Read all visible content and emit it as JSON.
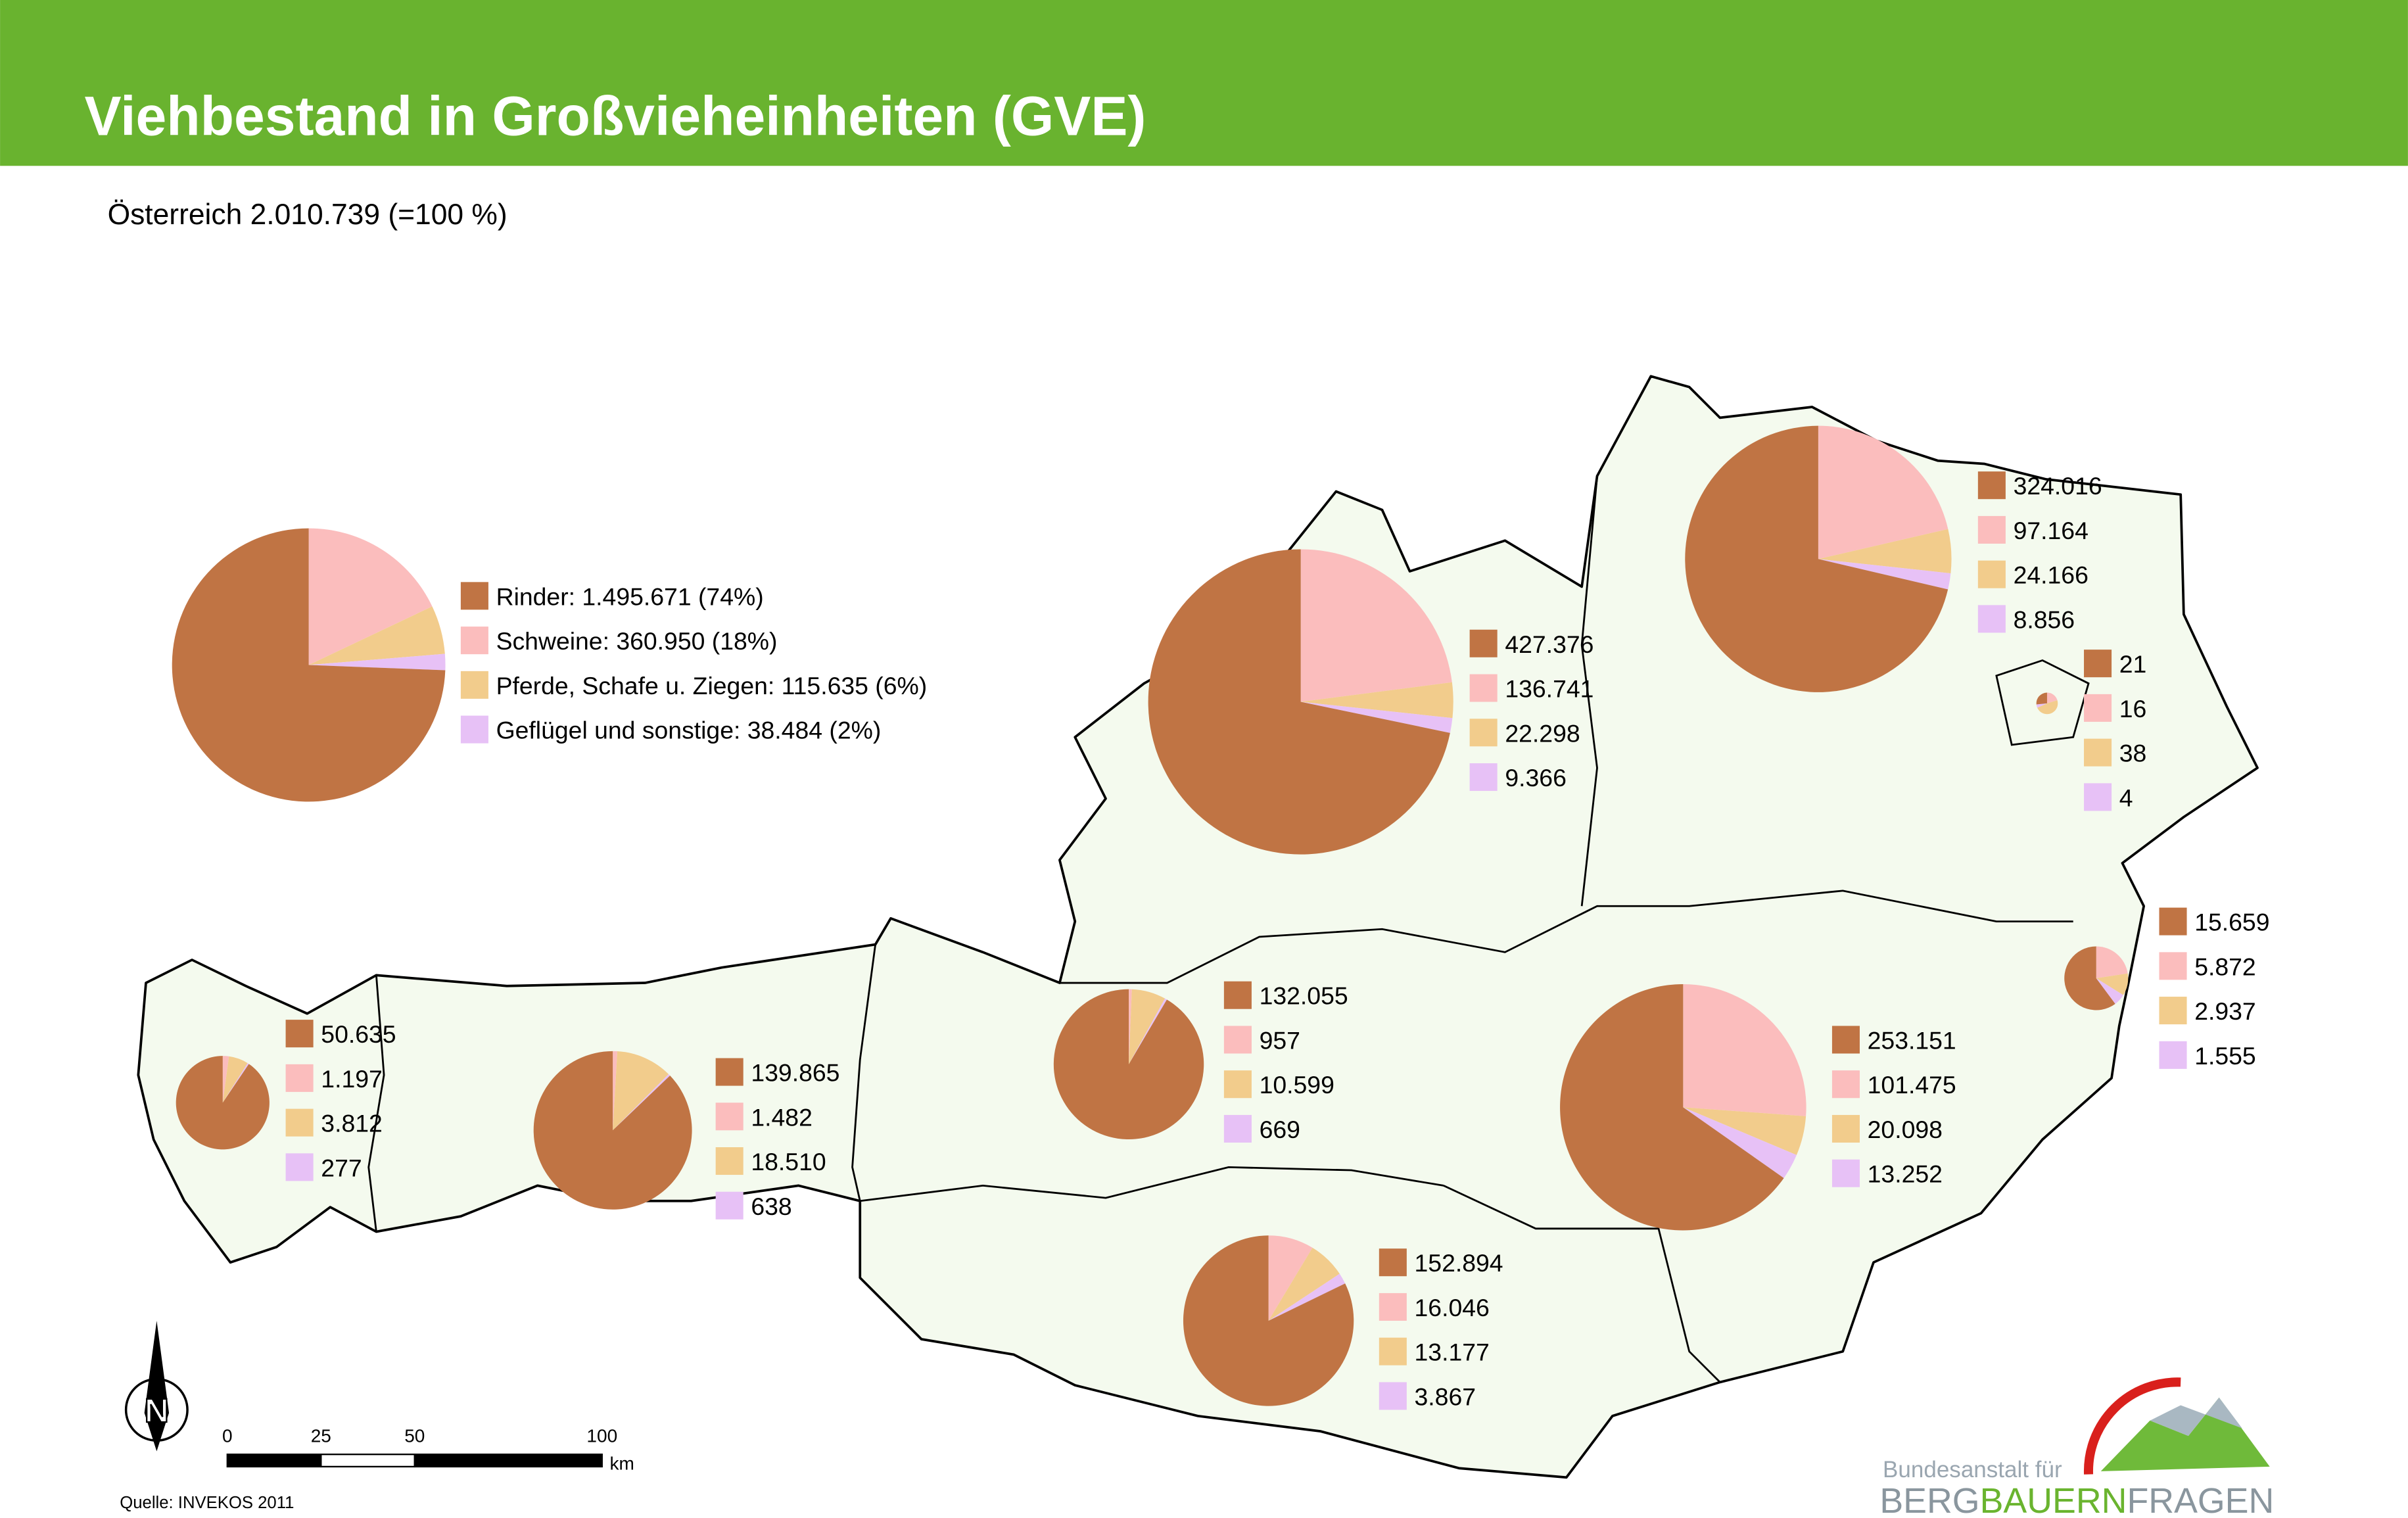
{
  "header": {
    "title": "Viehbestand in Großvieheinheiten (GVE)"
  },
  "subtitle": "Österreich 2.010.739 (=100 %)",
  "colors": [
    "#c07444",
    "#fbbdbd",
    "#f2cc8c",
    "#e7c1f6"
  ],
  "austria": {
    "values": [
      1495671,
      360950,
      115635,
      38484
    ],
    "labels": [
      "Rinder: 1.495.671 (74%)",
      "Schweine: 360.950 (18%)",
      "Pferde, Schafe u. Ziegen: 115.635 (6%)",
      "Geflügel und sonstige: 38.484 (2%)"
    ]
  },
  "regions": [
    {
      "values": [
        427376,
        136741,
        22298,
        9366
      ],
      "value_labels": [
        "427.376",
        "136.741",
        "22.298",
        "9.366"
      ]
    },
    {
      "values": [
        324016,
        97164,
        24166,
        8856
      ],
      "value_labels": [
        "324.016",
        "97.164",
        "24.166",
        "8.856"
      ]
    },
    {
      "values": [
        21,
        16,
        38,
        4
      ],
      "value_labels": [
        "21",
        "16",
        "38",
        "4"
      ]
    },
    {
      "values": [
        15659,
        5872,
        2937,
        1555
      ],
      "value_labels": [
        "15.659",
        "5.872",
        "2.937",
        "1.555"
      ]
    },
    {
      "values": [
        253151,
        101475,
        20098,
        13252
      ],
      "value_labels": [
        "253.151",
        "101.475",
        "20.098",
        "13.252"
      ]
    },
    {
      "values": [
        132055,
        957,
        10599,
        669
      ],
      "value_labels": [
        "132.055",
        "957",
        "10.599",
        "669"
      ]
    },
    {
      "values": [
        152894,
        16046,
        13177,
        3867
      ],
      "value_labels": [
        "152.894",
        "16.046",
        "13.177",
        "3.867"
      ]
    },
    {
      "values": [
        139865,
        1482,
        18510,
        638
      ],
      "value_labels": [
        "139.865",
        "1.482",
        "18.510",
        "638"
      ]
    },
    {
      "values": [
        50635,
        1197,
        3812,
        277
      ],
      "value_labels": [
        "50.635",
        "1.197",
        "3.812",
        "277"
      ]
    }
  ],
  "scale": {
    "labels": [
      "0",
      "25",
      "50",
      "100"
    ],
    "unit": "km"
  },
  "north": "N",
  "source": "Quelle: INVEKOS 2011",
  "logo": {
    "line1": "Bundesanstalt für",
    "parts": [
      "BERG",
      "BAUERN",
      "FRAGEN"
    ]
  }
}
